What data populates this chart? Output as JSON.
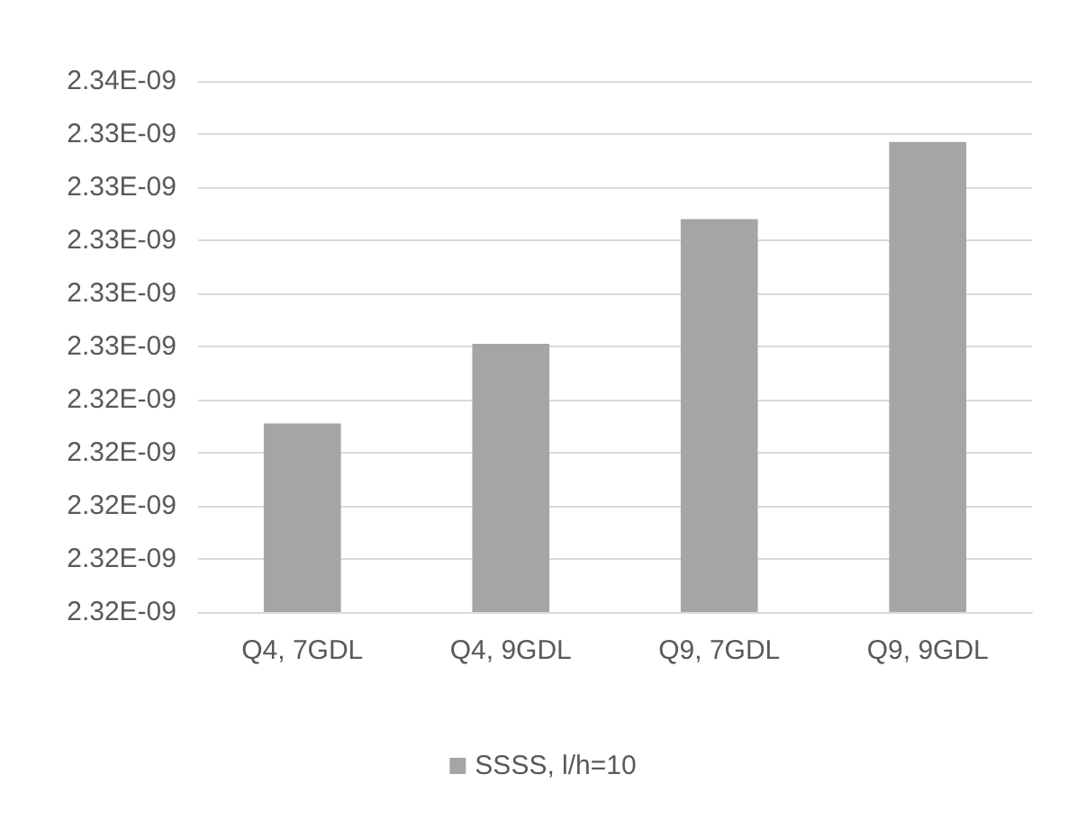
{
  "chart_data": {
    "type": "bar",
    "categories": [
      "Q4, 7GDL",
      "Q4, 9GDL",
      "Q9, 7GDL",
      "Q9, 9GDL"
    ],
    "series": [
      {
        "name": "SSSS, l/h=10",
        "color": "#a5a5a5",
        "values": [
          2.3231e-09,
          2.3261e-09,
          2.3308e-09,
          2.3337e-09
        ]
      }
    ],
    "ylim": [
      2.316e-09,
      2.336e-09
    ],
    "yticks": [
      {
        "value": 2.316e-09,
        "label": "2.32E-09"
      },
      {
        "value": 2.318e-09,
        "label": "2.32E-09"
      },
      {
        "value": 2.32e-09,
        "label": "2.32E-09"
      },
      {
        "value": 2.322e-09,
        "label": "2.32E-09"
      },
      {
        "value": 2.324e-09,
        "label": "2.32E-09"
      },
      {
        "value": 2.326e-09,
        "label": "2.33E-09"
      },
      {
        "value": 2.328e-09,
        "label": "2.33E-09"
      },
      {
        "value": 2.33e-09,
        "label": "2.33E-09"
      },
      {
        "value": 2.332e-09,
        "label": "2.33E-09"
      },
      {
        "value": 2.334e-09,
        "label": "2.33E-09"
      },
      {
        "value": 2.336e-09,
        "label": "2.34E-09"
      }
    ],
    "grid": true,
    "legend": "bottom"
  }
}
